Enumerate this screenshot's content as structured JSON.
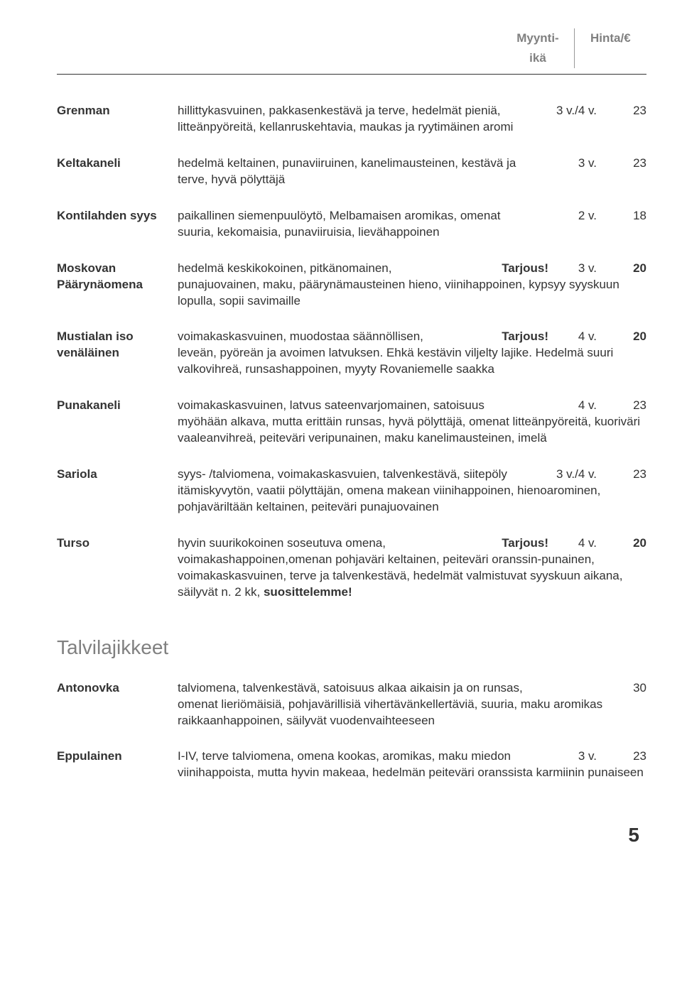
{
  "header": {
    "col1a": "Myynti-",
    "col1b": "ikä",
    "col2": "Hinta/€"
  },
  "entries": [
    {
      "name": "Grenman",
      "line1": "hillittykasvuinen, pakkasenkestävä ja terve, hedelmät pieniä,",
      "age": "3 v./4 v.",
      "price": "23",
      "priceBold": false,
      "rest": "litteänpyöreitä, kellanruskehtavia, maukas ja ryytimäinen aromi",
      "tarjous": false
    },
    {
      "name": "Keltakaneli",
      "line1": "hedelmä keltainen, punaviiruinen, kanelimausteinen, kestävä ja",
      "age": "3 v.",
      "price": "23",
      "priceBold": false,
      "rest": "terve, hyvä pölyttäjä",
      "tarjous": false
    },
    {
      "name": "Kontilahden syys",
      "line1": "paikallinen siemenpuulöytö, Melbamaisen aromikas, omenat",
      "age": "2 v.",
      "price": "18",
      "priceBold": false,
      "rest": "suuria, kekomaisia, punaviiruisia, lievähappoinen",
      "tarjous": false
    },
    {
      "name": "Moskovan Päärynäomena",
      "line1": "hedelmä keskikokoinen, pitkänomainen,",
      "age": "3 v.",
      "price": "20",
      "priceBold": true,
      "rest": "punajuovainen, maku, päärynämausteinen hieno, viinihappoinen, kypsyy syyskuun lopulla, sopii savimaille",
      "tarjous": true
    },
    {
      "name": "Mustialan iso venäläinen",
      "line1": "voimakaskasvuinen, muodostaa säännöllisen,",
      "age": "4 v.",
      "price": "20",
      "priceBold": true,
      "rest": "leveän, pyöreän ja avoimen latvuksen. Ehkä kestävin viljelty lajike. Hedelmä suuri valkovihreä, runsashappoinen, myyty Rovaniemelle saakka",
      "tarjous": true
    },
    {
      "name": "Punakaneli",
      "line1": "voimakaskasvuinen, latvus sateenvarjomainen, satoisuus",
      "age": "4 v.",
      "price": "23",
      "priceBold": false,
      "rest": "myöhään alkava, mutta erittäin runsas, hyvä pölyttäjä, omenat litteänpyöreitä, kuoriväri vaaleanvihreä, peiteväri veripunainen, maku kanelimausteinen, imelä",
      "tarjous": false
    },
    {
      "name": "Sariola",
      "line1": "syys- /talviomena, voimakaskasvuien, talvenkestävä, siitepöly",
      "age": "3 v./4 v.",
      "price": "23",
      "priceBold": false,
      "rest": "itämiskyvytön, vaatii pölyttäjän, omena makean viinihappoinen, hienoarominen, pohjaväriltään keltainen, peiteväri punajuovainen",
      "tarjous": false
    },
    {
      "name": "Turso",
      "line1": "hyvin suurikokoinen soseutuva omena,",
      "age": "4 v.",
      "price": "20",
      "priceBold": true,
      "rest": "voimakashappoinen,omenan pohjaväri keltainen, peiteväri oranssin-punainen, voimakaskasvuinen, terve ja talvenkestävä, hedelmät valmistuvat syyskuun aikana, säilyvät n. 2 kk, <b>suosittelemme!</b>",
      "tarjous": true
    }
  ],
  "sectionHeading": "Talvilajikkeet",
  "entries2": [
    {
      "name": "Antonovka",
      "line1": "talviomena, talvenkestävä, satoisuus alkaa aikaisin ja on runsas,",
      "age": "",
      "price": "30",
      "priceBold": false,
      "rest": "omenat lieriömäisiä, pohjavärillisiä vihertävänkellertäviä, suuria, maku aromikas raikkaanhappoinen, säilyvät vuodenvaihteeseen",
      "tarjous": false
    },
    {
      "name": "Eppulainen",
      "line1": "I-IV, terve talviomena, omena kookas, aromikas, maku miedon",
      "age": "3 v.",
      "price": "23",
      "priceBold": false,
      "rest": "viinihappoista, mutta hyvin makeaa, hedelmän peiteväri oranssista karmiinin punaiseen",
      "tarjous": false
    }
  ],
  "label_tarjous": "Tarjous!",
  "pageNum": "5"
}
